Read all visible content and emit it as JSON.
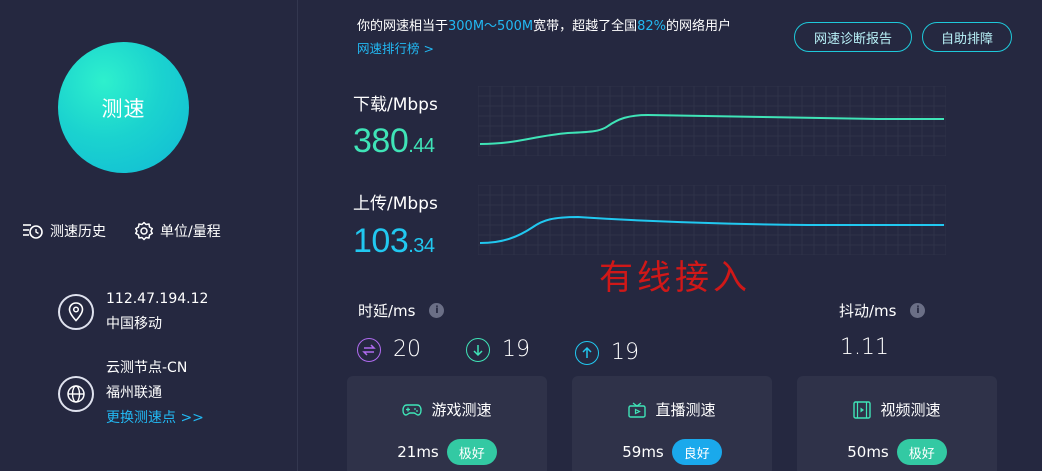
{
  "left": {
    "speed_button": "测速",
    "history_label": "测速历史",
    "unit_label": "单位/量程",
    "ip": "112.47.194.12",
    "isp": "中国移动",
    "node_name": "云测节点-CN",
    "node_city": "福州联通",
    "change_node": "更换测速点 >>"
  },
  "summary": {
    "prefix": "你的网速相当于",
    "bandwidth": "300M～500M",
    "mid": "宽带，超越了全国",
    "percent": "82%",
    "suffix": "的网络用户",
    "rank_link": "网速排行榜 >"
  },
  "buttons": {
    "report": "网速诊断报告",
    "self_check": "自助排障"
  },
  "download": {
    "label": "下载/Mbps",
    "value_int": "380",
    "value_dec": ".44"
  },
  "upload": {
    "label": "上传/Mbps",
    "value_int": "103",
    "value_dec": ".34"
  },
  "watermark": "有线接入",
  "latency": {
    "title": "时延/ms",
    "info": "i",
    "idle": "20",
    "down": "19",
    "up": "19"
  },
  "jitter": {
    "title": "抖动/ms",
    "info": "i",
    "value": "1.11"
  },
  "cards": [
    {
      "title": "游戏测速",
      "value": "21ms",
      "badge": "极好",
      "badge_color": "#33c9a3"
    },
    {
      "title": "直播测速",
      "value": "59ms",
      "badge": "良好",
      "badge_color": "#1aa9ec"
    },
    {
      "title": "视频测速",
      "value": "50ms",
      "badge": "极好",
      "badge_color": "#33c9a3"
    }
  ],
  "colors": {
    "download": "#3fe4b7",
    "upload": "#21c8f0",
    "accent": "#22b8f2"
  }
}
